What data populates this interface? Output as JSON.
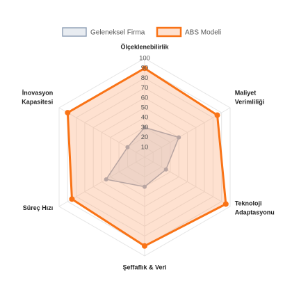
{
  "chart_data": {
    "type": "radar",
    "categories": [
      [
        "Ölçeklenebilirlik"
      ],
      [
        "Maliyet",
        "Verimliliği"
      ],
      [
        "Teknoloji",
        "Adaptasyonu"
      ],
      [
        "Şeffaflık & Veri"
      ],
      [
        "Süreç Hızı"
      ],
      [
        "İnovasyon",
        "Kapasitesi"
      ]
    ],
    "series": [
      {
        "name": "Geleneksel Firma",
        "color": "#94a3b8",
        "fill": "rgba(203,213,225,0.45)",
        "values": [
          30,
          40,
          25,
          30,
          45,
          20
        ]
      },
      {
        "name": "ABS Modeli",
        "color": "#f97316",
        "fill": "rgba(251,170,120,0.35)",
        "values": [
          90,
          85,
          95,
          90,
          85,
          90
        ]
      }
    ],
    "rlim": [
      0,
      100
    ],
    "rticks": [
      10,
      20,
      30,
      40,
      50,
      60,
      70,
      80,
      90,
      100
    ],
    "grid": true
  }
}
